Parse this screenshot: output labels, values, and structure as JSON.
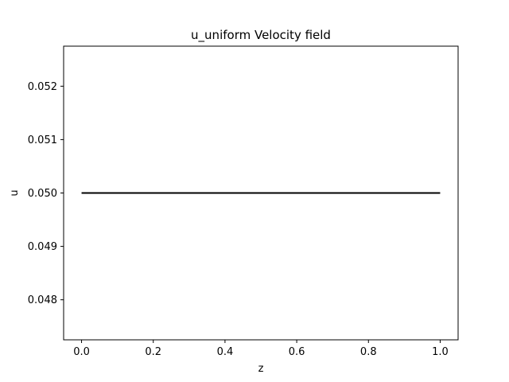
{
  "chart_data": {
    "type": "line",
    "title": "u_uniform Velocity field",
    "xlabel": "z",
    "ylabel": "u",
    "xlim": [
      -0.05,
      1.05
    ],
    "ylim": [
      0.04725,
      0.05275
    ],
    "x_ticks": [
      0.0,
      0.2,
      0.4,
      0.6,
      0.8,
      1.0
    ],
    "x_tick_labels": [
      "0.0",
      "0.2",
      "0.4",
      "0.6",
      "0.8",
      "1.0"
    ],
    "y_ticks": [
      0.048,
      0.049,
      0.05,
      0.051,
      0.052
    ],
    "y_tick_labels": [
      "0.048",
      "0.049",
      "0.050",
      "0.051",
      "0.052"
    ],
    "grid": false,
    "series": [
      {
        "color": "#000000",
        "x": [
          0.0,
          1.0
        ],
        "y": [
          0.05,
          0.05
        ]
      }
    ]
  }
}
